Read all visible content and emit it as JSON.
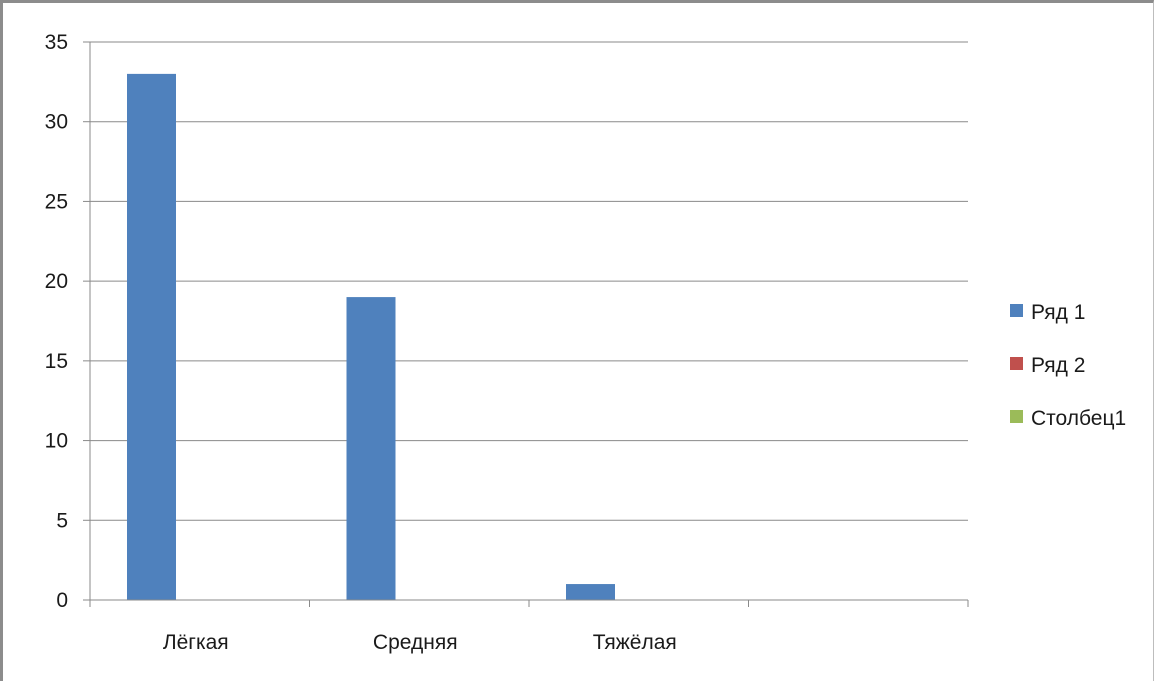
{
  "chart_data": {
    "type": "bar",
    "categories": [
      "Лёгкая",
      "Средняя",
      "Тяжёлая",
      ""
    ],
    "series": [
      {
        "name": "Ряд 1",
        "values": [
          33,
          19,
          1,
          null
        ],
        "color": "#4f81bd"
      },
      {
        "name": "Ряд 2",
        "values": [
          null,
          null,
          null,
          null
        ],
        "color": "#c0504d"
      },
      {
        "name": "Столбец1",
        "values": [
          null,
          null,
          null,
          null
        ],
        "color": "#9bbb59"
      }
    ],
    "title": "",
    "xlabel": "",
    "ylabel": "",
    "ylim": [
      0,
      35
    ],
    "yticks": [
      "0",
      "5",
      "10",
      "15",
      "20",
      "25",
      "30",
      "35"
    ],
    "grid": true,
    "legend_position": "right"
  }
}
